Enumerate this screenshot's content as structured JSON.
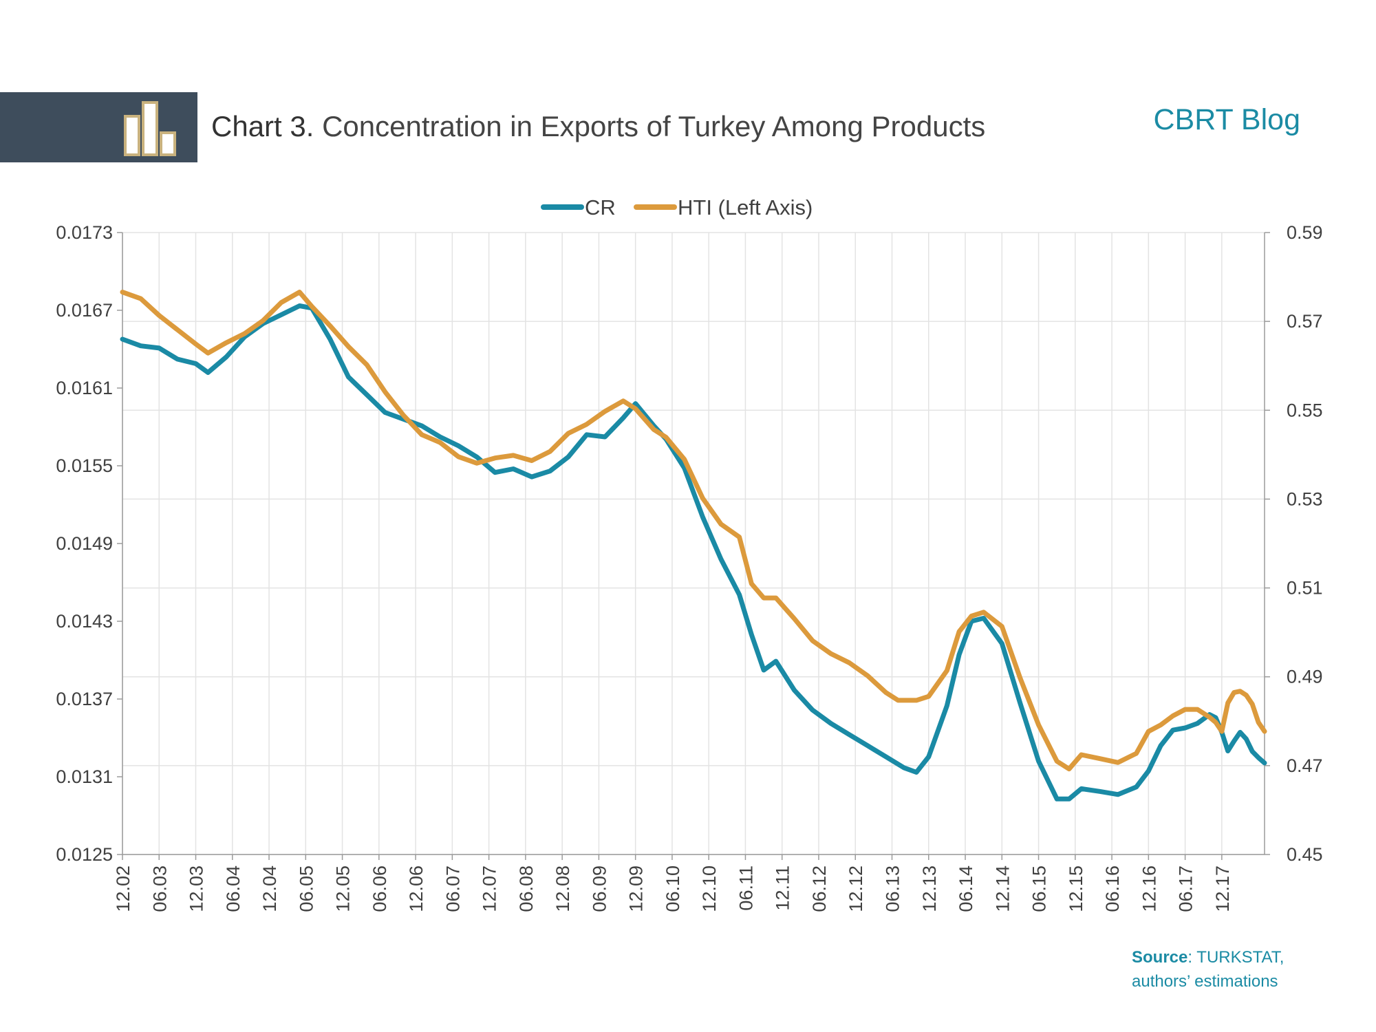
{
  "header": {
    "title_prefix": "Chart 3.",
    "title_rest": "Concentration in Exports of Turkey Among Products",
    "blog_name": "CBRT Blog",
    "band_color": "#3e4d5c",
    "icon": "bar-chart-icon"
  },
  "footer": {
    "source_label": "Source",
    "source_text": ": TURKSTAT,",
    "source_text2": "authors’ estimations"
  },
  "chart_data": {
    "type": "line",
    "x_tick_labels": [
      "12.02",
      "06.03",
      "12.03",
      "06.04",
      "12.04",
      "06.05",
      "12.05",
      "06.06",
      "12.06",
      "06.07",
      "12.07",
      "06.08",
      "12.08",
      "06.09",
      "12.09",
      "06.10",
      "12.10",
      "06.11",
      "12.11",
      "06.12",
      "12.12",
      "06.13",
      "12.13",
      "06.14",
      "12.14",
      "06.15",
      "12.15",
      "06.16",
      "12.16",
      "06.17",
      "12.17"
    ],
    "x_start_month_index": 0,
    "x_tick_step_months": 6,
    "x_max_month_index": 187,
    "left_axis": {
      "ticks": [
        "0.0173",
        "0.0167",
        "0.0161",
        "0.0155",
        "0.0149",
        "0.0143",
        "0.0137",
        "0.0131",
        "0.0125"
      ],
      "min": 0.0125,
      "max": 0.0173
    },
    "right_axis": {
      "ticks": [
        "0.59",
        "0.57",
        "0.55",
        "0.53",
        "0.51",
        "0.49",
        "0.47",
        "0.45"
      ],
      "min": 0.45,
      "max": 0.59
    },
    "grid": true,
    "legend_position": "top-center",
    "series": [
      {
        "name": "CR",
        "axis": "right",
        "color": "#1a8aa5",
        "points": [
          [
            0,
            0.566
          ],
          [
            3,
            0.5645
          ],
          [
            6,
            0.564
          ],
          [
            9,
            0.5615
          ],
          [
            12,
            0.5605
          ],
          [
            14,
            0.5585
          ],
          [
            17,
            0.562
          ],
          [
            20,
            0.5665
          ],
          [
            23,
            0.5695
          ],
          [
            26,
            0.5715
          ],
          [
            29,
            0.5735
          ],
          [
            31,
            0.573
          ],
          [
            34,
            0.566
          ],
          [
            37,
            0.5575
          ],
          [
            40,
            0.5535
          ],
          [
            43,
            0.5495
          ],
          [
            46,
            0.548
          ],
          [
            49,
            0.5465
          ],
          [
            52,
            0.544
          ],
          [
            55,
            0.542
          ],
          [
            58,
            0.5395
          ],
          [
            61,
            0.536
          ],
          [
            64,
            0.5368
          ],
          [
            67,
            0.535
          ],
          [
            70,
            0.5363
          ],
          [
            73,
            0.5395
          ],
          [
            76,
            0.5445
          ],
          [
            79,
            0.544
          ],
          [
            82,
            0.5483
          ],
          [
            84,
            0.5515
          ],
          [
            87,
            0.5465
          ],
          [
            89,
            0.5435
          ],
          [
            92,
            0.537
          ],
          [
            95,
            0.526
          ],
          [
            98,
            0.5165
          ],
          [
            101,
            0.5085
          ],
          [
            103,
            0.4995
          ],
          [
            105,
            0.4915
          ],
          [
            107,
            0.4935
          ],
          [
            110,
            0.487
          ],
          [
            113,
            0.4825
          ],
          [
            116,
            0.4795
          ],
          [
            119,
            0.477
          ],
          [
            122,
            0.4745
          ],
          [
            125,
            0.472
          ],
          [
            128,
            0.4695
          ],
          [
            130,
            0.4685
          ],
          [
            132,
            0.472
          ],
          [
            135,
            0.4835
          ],
          [
            137,
            0.495
          ],
          [
            139,
            0.5025
          ],
          [
            141,
            0.5032
          ],
          [
            144,
            0.4975
          ],
          [
            147,
            0.484
          ],
          [
            150,
            0.471
          ],
          [
            153,
            0.4625
          ],
          [
            155,
            0.4625
          ],
          [
            157,
            0.4648
          ],
          [
            160,
            0.4642
          ],
          [
            163,
            0.4635
          ],
          [
            166,
            0.4652
          ],
          [
            168,
            0.4688
          ],
          [
            170,
            0.4745
          ],
          [
            172,
            0.478
          ],
          [
            174,
            0.4785
          ],
          [
            176,
            0.4795
          ],
          [
            178,
            0.4815
          ],
          [
            179,
            0.4808
          ],
          [
            180,
            0.4775
          ],
          [
            181,
            0.4733
          ],
          [
            182,
            0.4755
          ],
          [
            183,
            0.4775
          ],
          [
            184,
            0.476
          ],
          [
            185,
            0.4732
          ],
          [
            186,
            0.4718
          ],
          [
            187,
            0.4706
          ]
        ]
      },
      {
        "name": "HTI (Left Axis)",
        "axis": "left",
        "color": "#dc9a3c",
        "points": [
          [
            0,
            0.01684
          ],
          [
            3,
            0.01679
          ],
          [
            6,
            0.01666
          ],
          [
            9,
            0.01655
          ],
          [
            12,
            0.01644
          ],
          [
            14,
            0.01637
          ],
          [
            17,
            0.01645
          ],
          [
            20,
            0.01652
          ],
          [
            23,
            0.01662
          ],
          [
            26,
            0.01676
          ],
          [
            29,
            0.01684
          ],
          [
            31,
            0.01673
          ],
          [
            34,
            0.01658
          ],
          [
            37,
            0.01642
          ],
          [
            40,
            0.01628
          ],
          [
            43,
            0.01607
          ],
          [
            46,
            0.01589
          ],
          [
            49,
            0.01574
          ],
          [
            52,
            0.01568
          ],
          [
            55,
            0.01557
          ],
          [
            58,
            0.01552
          ],
          [
            61,
            0.01556
          ],
          [
            64,
            0.01558
          ],
          [
            67,
            0.01554
          ],
          [
            70,
            0.01561
          ],
          [
            73,
            0.01575
          ],
          [
            76,
            0.01582
          ],
          [
            79,
            0.01592
          ],
          [
            82,
            0.016
          ],
          [
            84,
            0.01594
          ],
          [
            87,
            0.01578
          ],
          [
            89,
            0.01572
          ],
          [
            92,
            0.01555
          ],
          [
            95,
            0.01525
          ],
          [
            98,
            0.01505
          ],
          [
            101,
            0.01495
          ],
          [
            103,
            0.01459
          ],
          [
            105,
            0.01448
          ],
          [
            107,
            0.01448
          ],
          [
            110,
            0.01432
          ],
          [
            113,
            0.01415
          ],
          [
            116,
            0.01405
          ],
          [
            119,
            0.01398
          ],
          [
            122,
            0.01388
          ],
          [
            125,
            0.01375
          ],
          [
            127,
            0.01369
          ],
          [
            130,
            0.01369
          ],
          [
            132,
            0.01372
          ],
          [
            135,
            0.01392
          ],
          [
            137,
            0.01422
          ],
          [
            139,
            0.01434
          ],
          [
            141,
            0.01437
          ],
          [
            144,
            0.01426
          ],
          [
            147,
            0.01386
          ],
          [
            150,
            0.0135
          ],
          [
            153,
            0.01322
          ],
          [
            155,
            0.01316
          ],
          [
            157,
            0.01327
          ],
          [
            160,
            0.01324
          ],
          [
            163,
            0.01321
          ],
          [
            166,
            0.01328
          ],
          [
            168,
            0.01345
          ],
          [
            170,
            0.0135
          ],
          [
            172,
            0.01357
          ],
          [
            174,
            0.01362
          ],
          [
            176,
            0.01362
          ],
          [
            178,
            0.01356
          ],
          [
            179,
            0.01352
          ],
          [
            180,
            0.01345
          ],
          [
            181,
            0.01367
          ],
          [
            182,
            0.01375
          ],
          [
            183,
            0.01376
          ],
          [
            184,
            0.01373
          ],
          [
            185,
            0.01366
          ],
          [
            186,
            0.01352
          ],
          [
            187,
            0.01345
          ]
        ]
      }
    ]
  }
}
